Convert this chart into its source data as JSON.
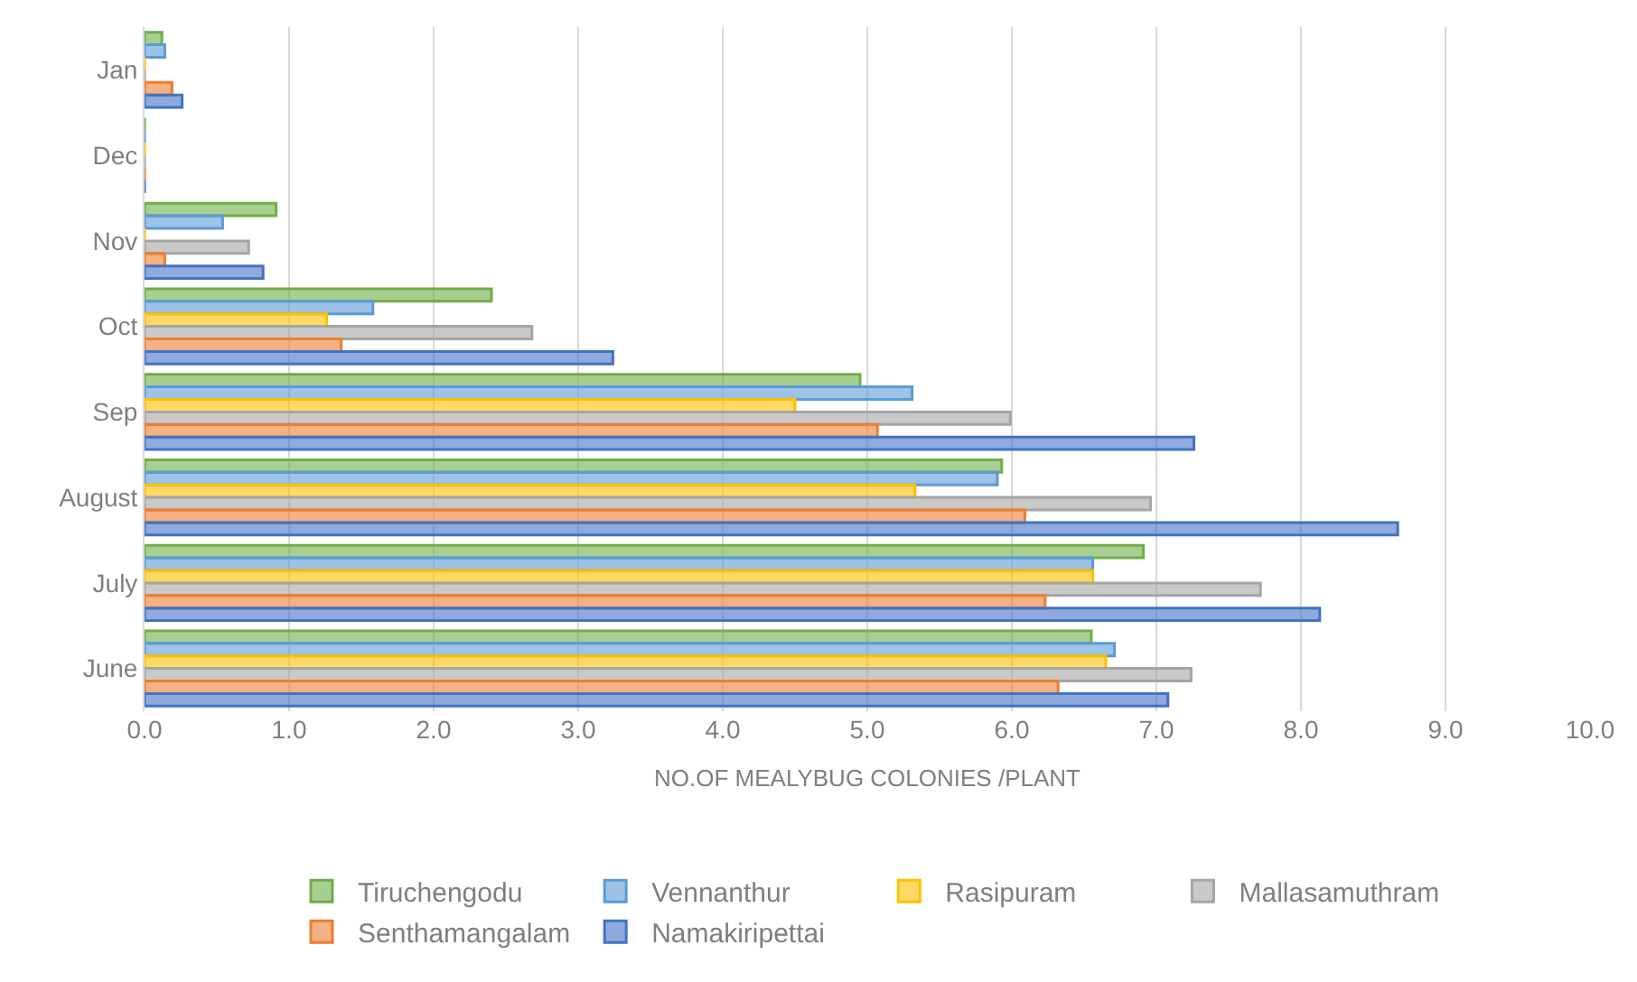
{
  "chart_data": {
    "type": "bar",
    "orientation": "horizontal",
    "xlabel": "NO.OF MEALYBUG COLONIES /PLANT",
    "categories": [
      "Jan",
      "Dec",
      "Nov",
      "Oct",
      "Sep",
      "August",
      "July",
      "June"
    ],
    "series": [
      {
        "name": "Tiruchengodu",
        "color": "#70ad47",
        "values": [
          0.12,
          0,
          0.91,
          2.4,
          4.95,
          5.93,
          6.91,
          6.55
        ]
      },
      {
        "name": "Vennanthur",
        "color": "#5b9bd5",
        "values": [
          0.14,
          0,
          0.54,
          1.58,
          5.31,
          5.9,
          6.56,
          6.71
        ]
      },
      {
        "name": "Rasipuram",
        "color": "#ffc000",
        "values": [
          0,
          0,
          0,
          1.26,
          4.5,
          5.33,
          6.56,
          6.65
        ]
      },
      {
        "name": "Mallasamuthram",
        "color": "#a5a5a5",
        "values": [
          0,
          0,
          0.72,
          2.68,
          5.99,
          6.96,
          7.72,
          7.24
        ]
      },
      {
        "name": "Senthamangalam",
        "color": "#ed7d31",
        "values": [
          0.19,
          0,
          0.14,
          1.36,
          5.07,
          6.09,
          6.23,
          6.32
        ]
      },
      {
        "name": "Namakiripettai",
        "color": "#4472c4",
        "values": [
          0.26,
          0,
          0.82,
          3.24,
          7.26,
          8.67,
          8.13,
          7.08
        ]
      }
    ],
    "xlim": [
      0,
      10
    ],
    "xticks": [
      {
        "value": 0,
        "label": "0.0"
      },
      {
        "value": 1,
        "label": "1.0"
      },
      {
        "value": 2,
        "label": "2.0"
      },
      {
        "value": 3,
        "label": "3.0"
      },
      {
        "value": 4,
        "label": "4.0"
      },
      {
        "value": 5,
        "label": "5.0"
      },
      {
        "value": 6,
        "label": "6.0"
      },
      {
        "value": 7,
        "label": "7.0"
      },
      {
        "value": 8,
        "label": "8.0"
      },
      {
        "value": 9,
        "label": "9.0"
      },
      {
        "value": 10,
        "label": "10.0"
      }
    ],
    "grid": "x",
    "legend": "bottom"
  }
}
